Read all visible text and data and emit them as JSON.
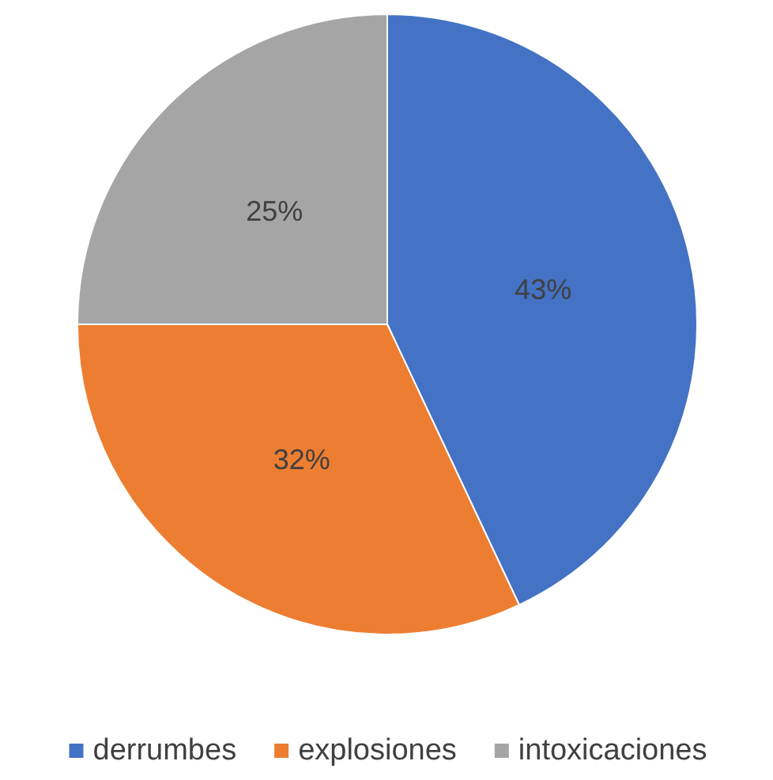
{
  "chart_data": {
    "type": "pie",
    "categories": [
      "derrumbes",
      "explosiones",
      "intoxicaciones"
    ],
    "values": [
      43,
      32,
      25
    ],
    "colors": [
      "#4472c4",
      "#ed7d31",
      "#a5a5a5"
    ],
    "value_labels": [
      "43%",
      "32%",
      "25%"
    ],
    "legend": "bottom"
  }
}
